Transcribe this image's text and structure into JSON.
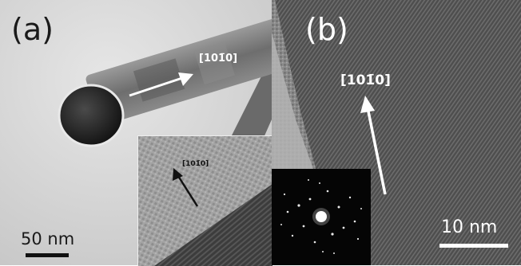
{
  "panel_a": {
    "label": "(a)",
    "direction": "[101̄0]",
    "direction_small": "[101̄0]",
    "scale_text": "50 nm"
  },
  "panel_b": {
    "label": "(b)",
    "direction": "[101̄0]",
    "scale_text": "10 nm"
  },
  "colors": {
    "background_a": "#d6d6d6",
    "nanowire": "#7a7a7a",
    "particle": "#2a2a2a",
    "lattice_b": "#5a5a5a",
    "label_dark": "#1a1a1a",
    "label_light": "#ffffff",
    "diffraction_bg": "#050505"
  }
}
